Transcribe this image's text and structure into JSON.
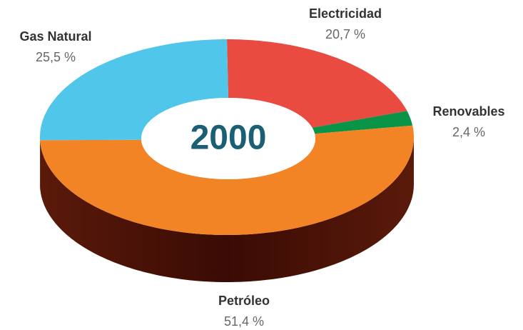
{
  "chart_data": {
    "type": "pie",
    "title": "2000",
    "categories": [
      "Electricidad",
      "Renovables",
      "Petróleo",
      "Gas Natural"
    ],
    "values": [
      20.7,
      2.4,
      51.4,
      25.5
    ],
    "value_labels": [
      "20,7 %",
      "2,4 %",
      "51,4 %",
      "25,5 %"
    ],
    "colors": [
      "#e94b40",
      "#0a9447",
      "#f38425",
      "#4fc6ea"
    ]
  }
}
